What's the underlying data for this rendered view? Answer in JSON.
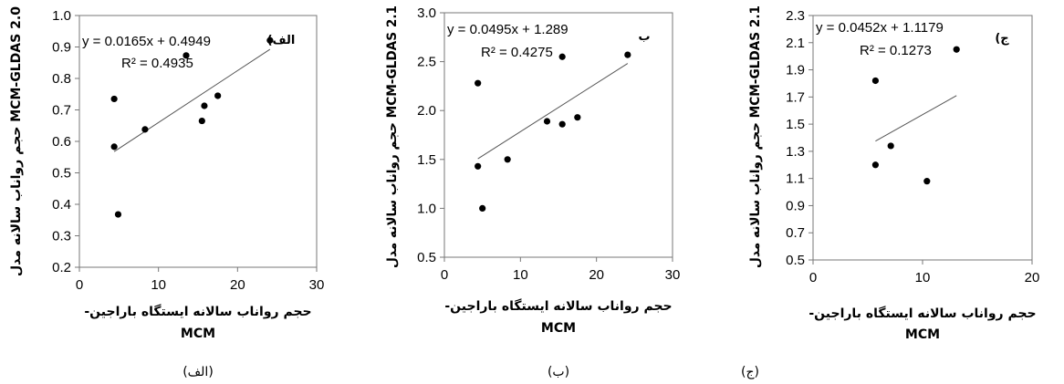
{
  "chart_data": [
    {
      "type": "scatter",
      "panel_label": "الف)",
      "caption": "(الف)",
      "xlabel": "حجم رواناب سالانه ایستگاه باراجین-",
      "xlabel_unit": "MCM",
      "ylabel": "حجم رواناب سالانه مدل MCM-GLDAS 2.0",
      "xlim": [
        0,
        30
      ],
      "ylim": [
        0.2,
        1.0
      ],
      "xticks": [
        "0",
        "10",
        "20",
        "30"
      ],
      "yticks": [
        "0.2",
        "0.3",
        "0.4",
        "0.5",
        "0.6",
        "0.7",
        "0.8",
        "0.9",
        "1.0"
      ],
      "points": [
        [
          4.4,
          0.735
        ],
        [
          4.4,
          0.583
        ],
        [
          4.9,
          0.368
        ],
        [
          8.3,
          0.638
        ],
        [
          13.5,
          0.873
        ],
        [
          15.5,
          0.665
        ],
        [
          15.8,
          0.713
        ],
        [
          17.5,
          0.745
        ],
        [
          24.1,
          0.921
        ]
      ],
      "trendline": {
        "slope": 0.0165,
        "intercept": 0.4949,
        "x_range": [
          4.4,
          24.1
        ]
      },
      "equation": "y = 0.0165x + 0.4949",
      "r2": "R² = 0.4935"
    },
    {
      "type": "scatter",
      "panel_label": "ب",
      "caption": "(ب)",
      "xlabel": "حجم رواناب سالانه ایستگاه باراجین-",
      "xlabel_unit": "MCM",
      "ylabel": "حجم رواناب سالانه مدل MCM-GLDAS 2.1",
      "xlim": [
        0,
        30
      ],
      "ylim": [
        0.5,
        3.0
      ],
      "xticks": [
        "0",
        "10",
        "20",
        "30"
      ],
      "yticks": [
        "0.5",
        "1.0",
        "1.5",
        "2.0",
        "2.5",
        "3.0"
      ],
      "points": [
        [
          4.4,
          2.28
        ],
        [
          4.4,
          1.43
        ],
        [
          5.0,
          1.0
        ],
        [
          8.3,
          1.5
        ],
        [
          13.5,
          1.89
        ],
        [
          15.5,
          2.55
        ],
        [
          15.5,
          1.86
        ],
        [
          17.5,
          1.93
        ],
        [
          24.1,
          2.57
        ]
      ],
      "trendline": {
        "slope": 0.0495,
        "intercept": 1.289,
        "x_range": [
          4.4,
          24.1
        ]
      },
      "equation": "y = 0.0495x + 1.289",
      "r2": "R² = 0.4275"
    },
    {
      "type": "scatter",
      "panel_label": "ج)",
      "caption": "(ج)",
      "xlabel": "حجم رواناب سالانه ایستگاه باراجین-",
      "xlabel_unit": "MCM",
      "ylabel": "حجم رواناب سالانه مدل MCM-GLDAS 2.1",
      "xlim": [
        0,
        20
      ],
      "ylim": [
        0.5,
        2.3
      ],
      "xticks": [
        "0",
        "10",
        "20"
      ],
      "yticks": [
        "0.5",
        "0.7",
        "0.9",
        "1.1",
        "1.3",
        "1.5",
        "1.7",
        "1.9",
        "2.1",
        "2.3"
      ],
      "points": [
        [
          5.7,
          1.82
        ],
        [
          5.7,
          1.2
        ],
        [
          7.1,
          1.34
        ],
        [
          10.4,
          1.08
        ],
        [
          13.1,
          2.05
        ]
      ],
      "trendline": {
        "slope": 0.0452,
        "intercept": 1.1179,
        "x_range": [
          5.7,
          13.1
        ]
      },
      "equation": "y = 0.0452x + 1.1179",
      "r2": "R² = 0.1273"
    }
  ]
}
